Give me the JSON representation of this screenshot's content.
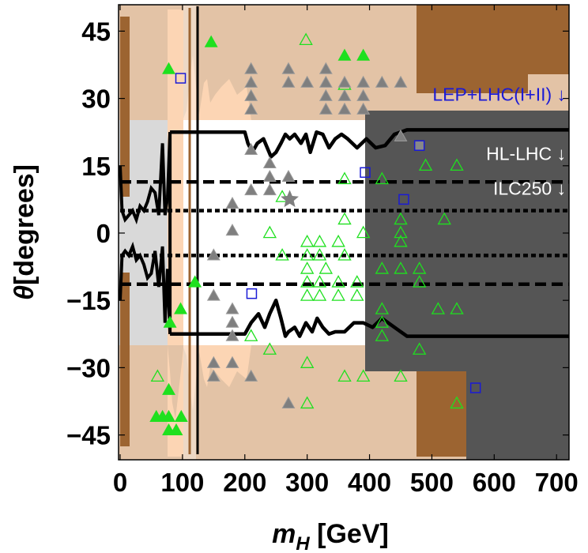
{
  "chart_data": {
    "type": "scatter",
    "xlabel_main": "m",
    "xlabel_sub": "H",
    "xlabel_unit": " [GeV]",
    "ylabel_symbol": "θ",
    "ylabel_unit": "[degrees]",
    "xlim": [
      0,
      720
    ],
    "ylim": [
      -46.5,
      46.5
    ],
    "x_ticks": [
      0,
      100,
      200,
      300,
      400,
      500,
      600,
      700
    ],
    "x_tick_labels": [
      "0",
      "100",
      "200",
      "300",
      "400",
      "500",
      "600",
      "700"
    ],
    "y_ticks": [
      45,
      30,
      15,
      0,
      -15,
      -30,
      -45
    ],
    "y_tick_labels": [
      "45",
      "30",
      "15",
      "0",
      "−15",
      "−30",
      "−45"
    ],
    "annotations": [
      {
        "text": "LEP+LHC(I+II) ↓",
        "x": 715,
        "y": 29.5,
        "color": "#1a1ad6"
      },
      {
        "text": "HL-LHC ↓",
        "x": 715,
        "y": 16.3,
        "color": "#ffffff"
      },
      {
        "text": "ILC250 ↓",
        "x": 715,
        "y": 8.5,
        "color": "#ffffff"
      }
    ],
    "colors": {
      "brown": "#9c6431",
      "peach": "#e3c3a6",
      "light_orange": "#fcd5b4",
      "light_gray": "#d9d9d9",
      "dark_gray": "#555555",
      "green": "#1fe01f",
      "gray_marker": "#7f7f7f",
      "blue": "#1a1ad6"
    },
    "limit_lines": [
      {
        "name": "HL-LHC",
        "style": "dashed",
        "y": [
          11.4,
          -11.4
        ]
      },
      {
        "name": "ILC250",
        "style": "dotted",
        "y": [
          5,
          -5
        ]
      }
    ],
    "current_bound_upper": [
      [
        80,
        22.5
      ],
      [
        200,
        22.5
      ],
      [
        205,
        20
      ],
      [
        212,
        18
      ],
      [
        220,
        20
      ],
      [
        230,
        21
      ],
      [
        242,
        17
      ],
      [
        250,
        18
      ],
      [
        258,
        20
      ],
      [
        265,
        22
      ],
      [
        272,
        21
      ],
      [
        280,
        22
      ],
      [
        290,
        20
      ],
      [
        298,
        22
      ],
      [
        305,
        18
      ],
      [
        315,
        22.5
      ],
      [
        325,
        22
      ],
      [
        335,
        19
      ],
      [
        345,
        21
      ],
      [
        355,
        22
      ],
      [
        365,
        21
      ],
      [
        380,
        19
      ],
      [
        395,
        21
      ],
      [
        410,
        19
      ],
      [
        425,
        19.5
      ],
      [
        440,
        22
      ],
      [
        460,
        23
      ],
      [
        720,
        23
      ]
    ],
    "current_bound_lower": [
      [
        80,
        -22.5
      ],
      [
        200,
        -22.5
      ],
      [
        210,
        -20
      ],
      [
        222,
        -18
      ],
      [
        232,
        -21
      ],
      [
        240,
        -18
      ],
      [
        250,
        -15
      ],
      [
        258,
        -19
      ],
      [
        265,
        -23
      ],
      [
        270,
        -22
      ],
      [
        280,
        -21
      ],
      [
        288,
        -23
      ],
      [
        298,
        -20
      ],
      [
        308,
        -22
      ],
      [
        316,
        -19
      ],
      [
        325,
        -21
      ],
      [
        335,
        -22.5
      ],
      [
        345,
        -22
      ],
      [
        360,
        -22
      ],
      [
        375,
        -20
      ],
      [
        390,
        -20
      ],
      [
        405,
        -21
      ],
      [
        420,
        -19
      ],
      [
        440,
        -21
      ],
      [
        460,
        -23
      ],
      [
        720,
        -23
      ]
    ],
    "series": [
      {
        "name": "",
        "marker": "open-triangle",
        "color": "#1fe01f",
        "points": [
          [
            298,
            43
          ],
          [
            360,
            33
          ],
          [
            490,
            15
          ],
          [
            540,
            15
          ],
          [
            360,
            12
          ],
          [
            420,
            12
          ],
          [
            260,
            8
          ],
          [
            360,
            3
          ],
          [
            450,
            3
          ],
          [
            520,
            3
          ],
          [
            240,
            0
          ],
          [
            390,
            0
          ],
          [
            450,
            0
          ],
          [
            300,
            -2
          ],
          [
            320,
            -2
          ],
          [
            350,
            -2
          ],
          [
            450,
            -2
          ],
          [
            260,
            -5
          ],
          [
            300,
            -5
          ],
          [
            320,
            -5
          ],
          [
            360,
            -5
          ],
          [
            300,
            -8
          ],
          [
            330,
            -8
          ],
          [
            420,
            -8
          ],
          [
            450,
            -8
          ],
          [
            480,
            -8
          ],
          [
            300,
            -11
          ],
          [
            320,
            -11
          ],
          [
            350,
            -11
          ],
          [
            380,
            -11
          ],
          [
            480,
            -11
          ],
          [
            300,
            -14
          ],
          [
            320,
            -14
          ],
          [
            350,
            -14
          ],
          [
            380,
            -14
          ],
          [
            420,
            -17
          ],
          [
            510,
            -17
          ],
          [
            540,
            -17
          ],
          [
            210,
            -23
          ],
          [
            420,
            -20
          ],
          [
            420,
            -23
          ],
          [
            240,
            -26
          ],
          [
            480,
            -26
          ],
          [
            300,
            -29
          ],
          [
            60,
            -32
          ],
          [
            360,
            -32
          ],
          [
            390,
            -32
          ],
          [
            450,
            -32
          ],
          [
            540,
            -38
          ],
          [
            300,
            -38
          ]
        ]
      },
      {
        "name": "",
        "marker": "filled-triangle",
        "color": "#1fe01f",
        "points": [
          [
            146,
            42.5
          ],
          [
            360,
            39.5
          ],
          [
            390,
            39.5
          ],
          [
            78,
            36.5
          ],
          [
            120,
            -11
          ],
          [
            97,
            -17
          ],
          [
            80,
            -20
          ],
          [
            78,
            -35
          ],
          [
            58,
            -41
          ],
          [
            68,
            -41
          ],
          [
            78,
            -41
          ],
          [
            98,
            -41
          ],
          [
            78,
            -44
          ],
          [
            90,
            -44
          ]
        ]
      },
      {
        "name": "",
        "marker": "gray-triangle",
        "color": "#7f7f7f",
        "points": [
          [
            210,
            36.5
          ],
          [
            270,
            36.5
          ],
          [
            330,
            36.5
          ],
          [
            210,
            33.5
          ],
          [
            270,
            33.5
          ],
          [
            300,
            33.5
          ],
          [
            330,
            33.5
          ],
          [
            360,
            33.5
          ],
          [
            390,
            33.5
          ],
          [
            420,
            33.5
          ],
          [
            450,
            33.5
          ],
          [
            210,
            30.5
          ],
          [
            330,
            30.5
          ],
          [
            360,
            30.5
          ],
          [
            390,
            30.5
          ],
          [
            210,
            27.5
          ],
          [
            330,
            27.5
          ],
          [
            360,
            27.5
          ],
          [
            390,
            27.5
          ],
          [
            450,
            21.5
          ],
          [
            210,
            18.5
          ],
          [
            240,
            15.5
          ],
          [
            240,
            12.5
          ],
          [
            270,
            12.5
          ],
          [
            210,
            9.5
          ],
          [
            240,
            9.5
          ],
          [
            180,
            6.5
          ],
          [
            180,
            0.5
          ],
          [
            150,
            -5
          ],
          [
            150,
            -14
          ],
          [
            180,
            -17
          ],
          [
            180,
            -20
          ],
          [
            180,
            -23
          ],
          [
            150,
            -29
          ],
          [
            180,
            -29
          ],
          [
            150,
            -32
          ],
          [
            210,
            -32
          ],
          [
            270,
            -38
          ]
        ]
      },
      {
        "name": "",
        "marker": "open-square",
        "color": "#1a1ad6",
        "points": [
          [
            97,
            34.5
          ],
          [
            480,
            19.5
          ],
          [
            393,
            13.5
          ],
          [
            455,
            7.5
          ],
          [
            211,
            -13.5
          ],
          [
            570,
            -34.5
          ]
        ]
      },
      {
        "name": "",
        "marker": "star",
        "color": "#7f7f7f",
        "points": [
          [
            272,
            7.5
          ]
        ]
      }
    ]
  }
}
